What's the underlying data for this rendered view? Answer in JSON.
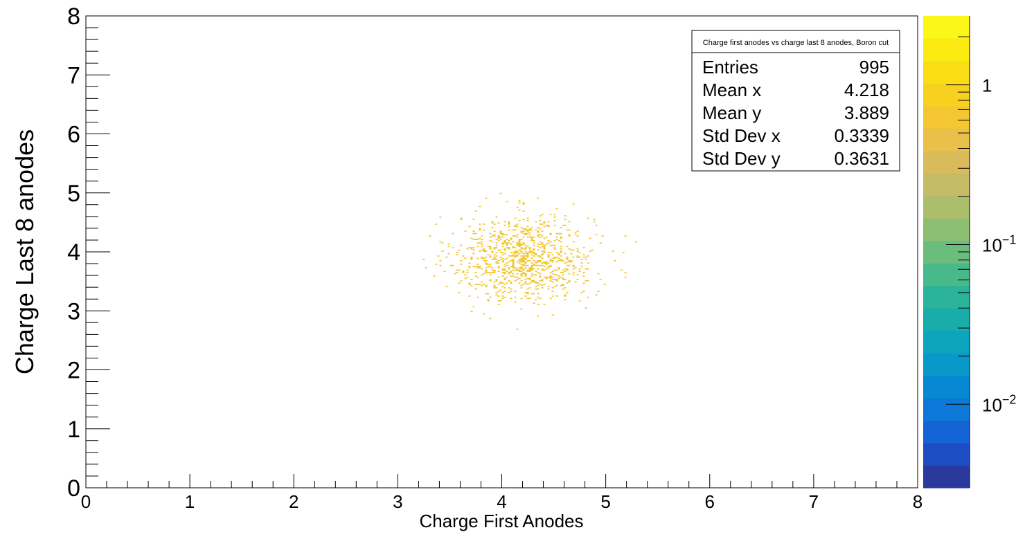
{
  "chart_data": {
    "type": "heatmap",
    "title": "",
    "xlabel": "Charge First Anodes",
    "ylabel": "Charge Last 8 anodes",
    "xlim": [
      0,
      8
    ],
    "ylim": [
      0,
      8
    ],
    "x_ticks": [
      "0",
      "1",
      "2",
      "3",
      "4",
      "5",
      "6",
      "7",
      "8"
    ],
    "y_ticks": [
      "0",
      "1",
      "2",
      "3",
      "4",
      "5",
      "6",
      "7",
      "8"
    ],
    "bin_color": "#f2c52a",
    "cluster": {
      "entries": 995,
      "mean_x": 4.218,
      "mean_y": 3.889,
      "std_x": 0.3339,
      "std_y": 0.3631
    },
    "stats_box": {
      "title": "Charge first anodes vs charge last 8 anodes, Boron cut",
      "rows": [
        {
          "label": "Entries",
          "value": "995"
        },
        {
          "label": "Mean x",
          "value": "4.218"
        },
        {
          "label": "Mean y",
          "value": "3.889"
        },
        {
          "label": "Std Dev x",
          "value": "0.3339"
        },
        {
          "label": "Std Dev y",
          "value": "0.3631"
        }
      ]
    },
    "colorbar": {
      "scale": "log",
      "range": [
        0.003,
        2.7
      ],
      "tick_labels": [
        {
          "base": "1",
          "exp": ""
        },
        {
          "base": "10",
          "exp": "−1"
        },
        {
          "base": "10",
          "exp": "−2"
        }
      ],
      "palette": [
        "#2a3a9c",
        "#1d4ec4",
        "#1464d6",
        "#0d78d8",
        "#0789d2",
        "#0899c8",
        "#0ca5bd",
        "#18acab",
        "#2ab39a",
        "#48b98a",
        "#6abd7d",
        "#8dbf73",
        "#acbd6c",
        "#c6bb66",
        "#dabb5a",
        "#e8c04a",
        "#f3c632",
        "#f8d11e",
        "#fadd14",
        "#fbeb10",
        "#fbf718"
      ]
    }
  }
}
